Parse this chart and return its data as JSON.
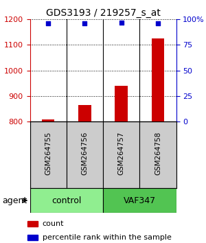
{
  "title": "GDS3193 / 219257_s_at",
  "samples": [
    "GSM264755",
    "GSM264756",
    "GSM264757",
    "GSM264758"
  ],
  "count_values": [
    808,
    865,
    940,
    1125
  ],
  "percentile_values": [
    96,
    96,
    97,
    96
  ],
  "groups": [
    {
      "label": "control",
      "samples_idx": [
        0,
        1
      ],
      "color": "#90ee90"
    },
    {
      "label": "VAF347",
      "samples_idx": [
        2,
        3
      ],
      "color": "#52c452"
    }
  ],
  "ylim_left": [
    800,
    1200
  ],
  "yticks_left": [
    800,
    900,
    1000,
    1100,
    1200
  ],
  "ylim_right": [
    0,
    100
  ],
  "yticks_right": [
    0,
    25,
    50,
    75,
    100
  ],
  "ytick_labels_right": [
    "0",
    "25",
    "50",
    "75",
    "100%"
  ],
  "bar_color": "#cc0000",
  "dot_color": "#0000cc",
  "bar_width": 0.35,
  "legend_count_label": "count",
  "legend_pct_label": "percentile rank within the sample",
  "agent_label": "agent",
  "background_color": "#ffffff",
  "plot_bg_color": "#ffffff",
  "tick_font_size": 8,
  "title_font_size": 10,
  "group_label_font_size": 9,
  "sample_label_font_size": 7.5,
  "legend_font_size": 8,
  "agent_font_size": 9
}
